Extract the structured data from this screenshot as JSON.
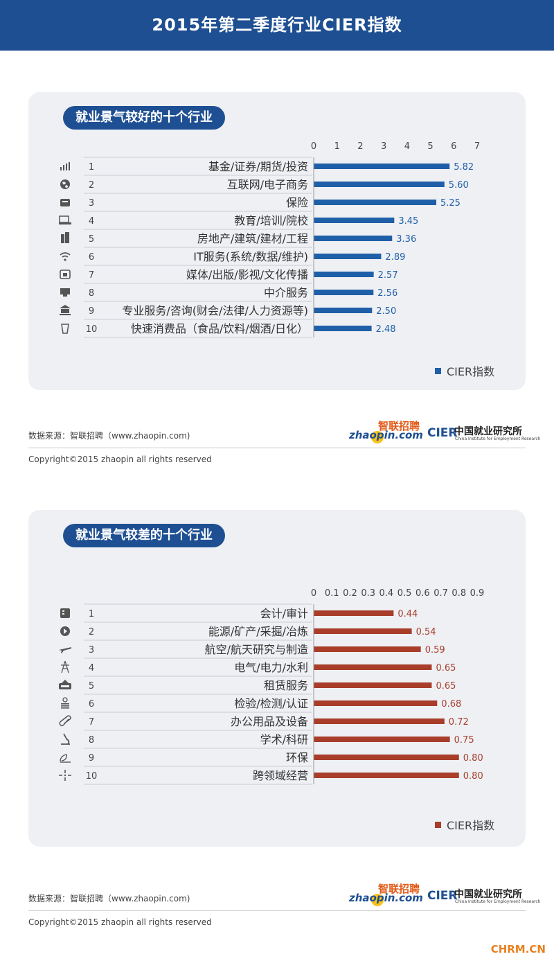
{
  "header": {
    "title": "2015年第二季度行业CIER指数"
  },
  "chart_data": [
    {
      "type": "bar",
      "orientation": "horizontal",
      "title": "就业景气较好的十个行业",
      "ranks": [
        "1",
        "2",
        "3",
        "4",
        "5",
        "6",
        "7",
        "8",
        "9",
        "10"
      ],
      "categories": [
        "基金/证券/期货/投资",
        "互联网/电子商务",
        "保险",
        "教育/培训/院校",
        "房地产/建筑/建材/工程",
        "IT服务(系统/数据/维护)",
        "媒体/出版/影视/文化传播",
        "中介服务",
        "专业服务/咨询(财会/法律/人力资源等)",
        "快速消费品（食品/饮料/烟酒/日化）"
      ],
      "icons": [
        "chart-icon",
        "globe-icon",
        "insurance-icon",
        "education-icon",
        "building-icon",
        "wifi-icon",
        "media-icon",
        "agency-icon",
        "consulting-icon",
        "beverage-icon"
      ],
      "series": [
        {
          "name": "CIER指数",
          "values": [
            5.82,
            5.6,
            5.25,
            3.45,
            3.36,
            2.89,
            2.57,
            2.56,
            2.5,
            2.48
          ],
          "labels": [
            "5.82",
            "5.60",
            "5.25",
            "3.45",
            "3.36",
            "2.89",
            "2.57",
            "2.56",
            "2.50",
            "2.48"
          ]
        }
      ],
      "xlim": [
        0,
        7
      ],
      "ticks": [
        "0",
        "1",
        "2",
        "3",
        "4",
        "5",
        "6",
        "7"
      ],
      "color": "#1f5fa8",
      "legend_position": "bottom-right"
    },
    {
      "type": "bar",
      "orientation": "horizontal",
      "title": "就业景气较差的十个行业",
      "ranks": [
        "1",
        "2",
        "3",
        "4",
        "5",
        "6",
        "7",
        "8",
        "9",
        "10"
      ],
      "categories": [
        "会计/审计",
        "能源/矿产/采掘/冶炼",
        "航空/航天研究与制造",
        "电气/电力/水利",
        "租赁服务",
        "检验/检测/认证",
        "办公用品及设备",
        "学术/科研",
        "环保",
        "跨领域经营"
      ],
      "icons": [
        "accounting-icon",
        "energy-icon",
        "airplane-icon",
        "power-tower-icon",
        "rent-icon",
        "inspection-icon",
        "paperclip-icon",
        "microscope-icon",
        "eco-icon",
        "cross-icon"
      ],
      "series": [
        {
          "name": "CIER指数",
          "values": [
            0.44,
            0.54,
            0.59,
            0.65,
            0.65,
            0.68,
            0.72,
            0.75,
            0.8,
            0.8
          ],
          "labels": [
            "0.44",
            "0.54",
            "0.59",
            "0.65",
            "0.65",
            "0.68",
            "0.72",
            "0.75",
            "0.80",
            "0.80"
          ]
        }
      ],
      "xlim": [
        0,
        0.9
      ],
      "ticks": [
        "0",
        "0.1",
        "0.2",
        "0.3",
        "0.4",
        "0.5",
        "0.6",
        "0.7",
        "0.8",
        "0.9"
      ],
      "color": "#a83d2a",
      "legend_position": "bottom-right"
    }
  ],
  "footer": {
    "source": "数据来源：智联招聘（www.zhaopin.com)",
    "copyright": "Copyright©2015 zhaopin all rights reserved",
    "zhaopin_top": "智联招聘",
    "zhaopin_text": "zhaopin.com",
    "cier_mark": "CIER",
    "cier_cn": "中国就业研究所",
    "cier_en": "China Institute for Employment Research"
  },
  "watermark": "CHRM.CN"
}
